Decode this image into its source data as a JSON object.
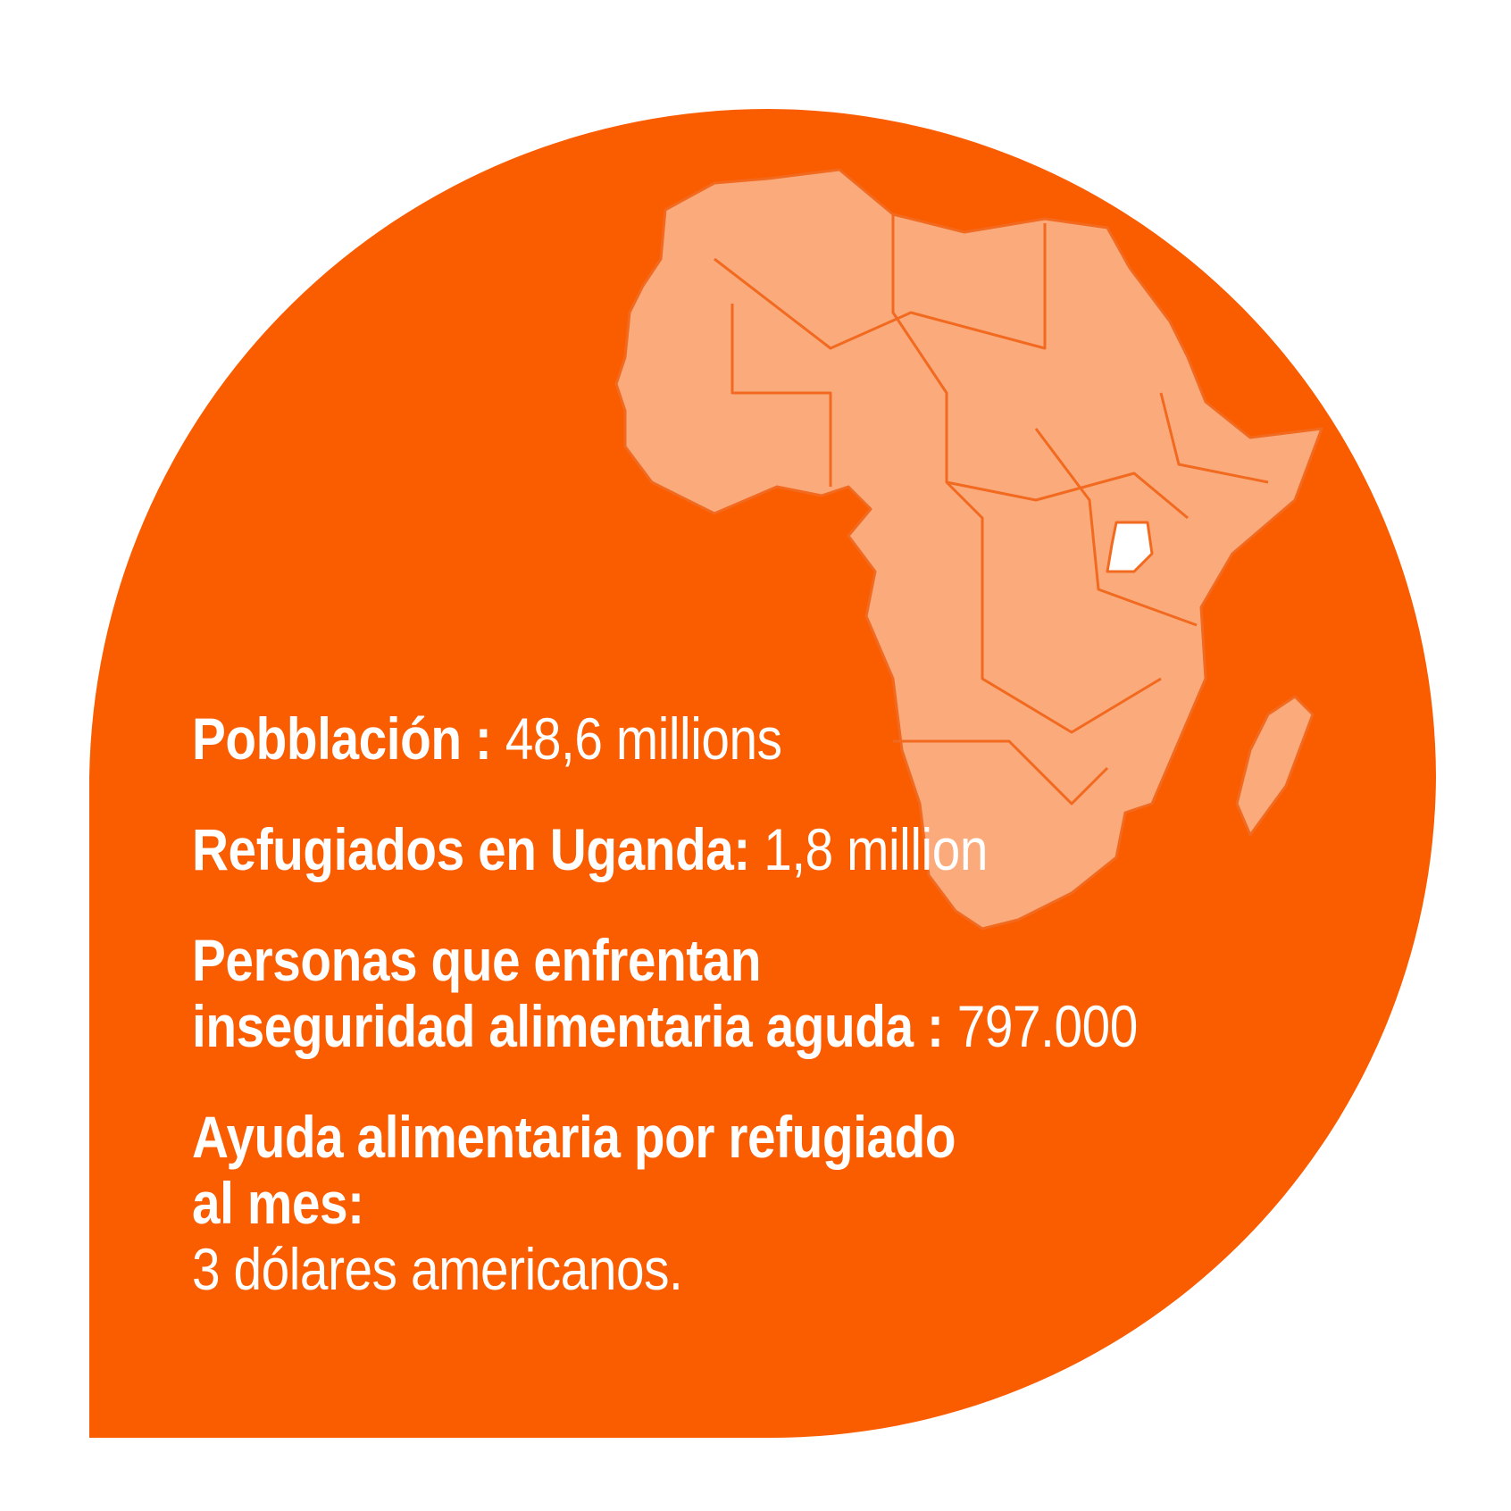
{
  "stats": [
    {
      "label_lines": [
        "Pobblación :"
      ],
      "value": "48,6 millions"
    },
    {
      "label_lines": [
        "Refugiados en Uganda:"
      ],
      "value": "1,8 million"
    },
    {
      "label_lines": [
        "Personas que enfrentan",
        "inseguridad alimentaria aguda :"
      ],
      "value": "797.000"
    },
    {
      "label_lines": [
        "Ayuda alimentaria por refugiado",
        "al mes:"
      ],
      "value": "3 dólares americanos."
    }
  ]
}
